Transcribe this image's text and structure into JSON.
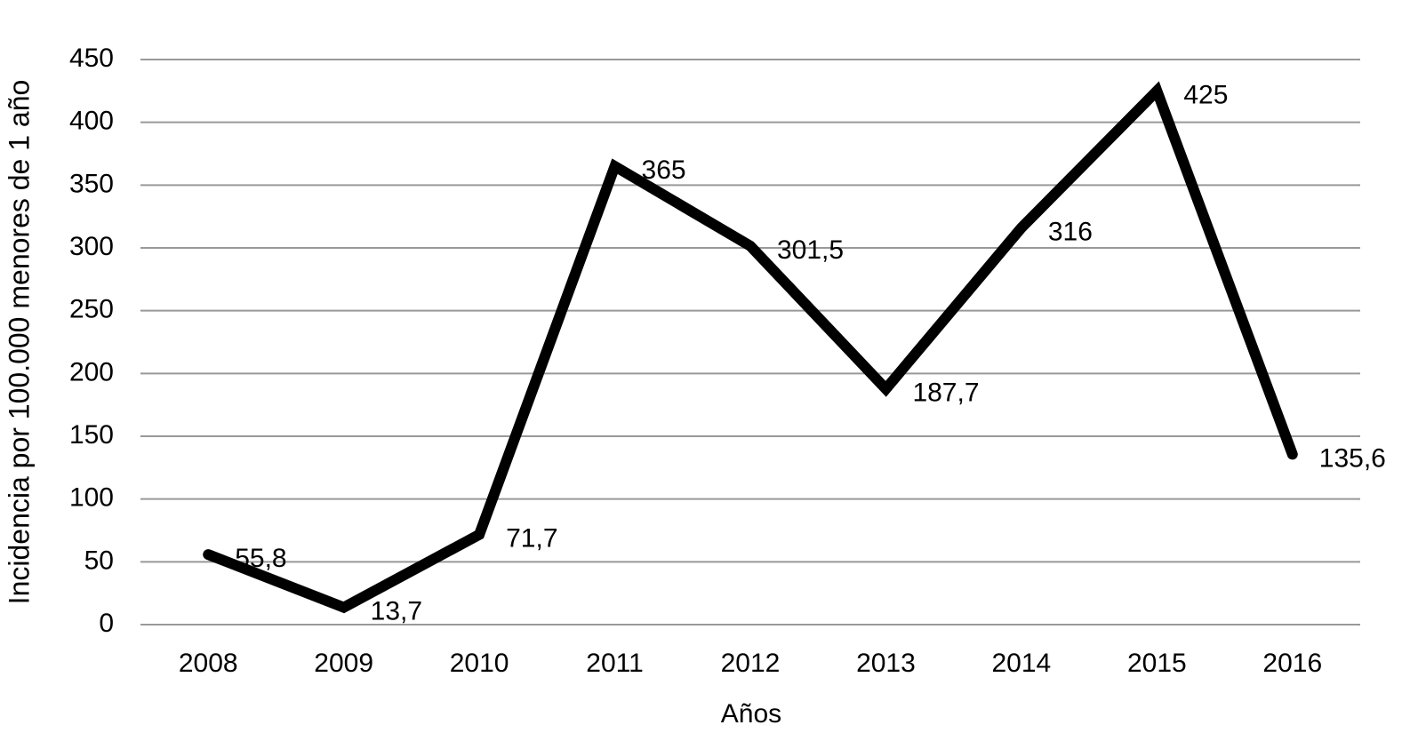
{
  "chart_data": {
    "type": "line",
    "x_label": "Años",
    "y_label": "Incidencia por 100.000 menores de 1 año",
    "categories": [
      "2008",
      "2009",
      "2010",
      "2011",
      "2012",
      "2013",
      "2014",
      "2015",
      "2016"
    ],
    "values": [
      55.8,
      13.7,
      71.7,
      365,
      301.5,
      187.7,
      316,
      425,
      135.6
    ],
    "value_labels": [
      "55,8",
      "13,7",
      "71,7",
      "365",
      "301,5",
      "187,7",
      "316",
      "425",
      "135,6"
    ],
    "color": "#000000",
    "ylim": [
      0,
      450
    ],
    "yticks": [
      0,
      50,
      100,
      150,
      200,
      250,
      300,
      350,
      400,
      450
    ],
    "grid": true
  }
}
